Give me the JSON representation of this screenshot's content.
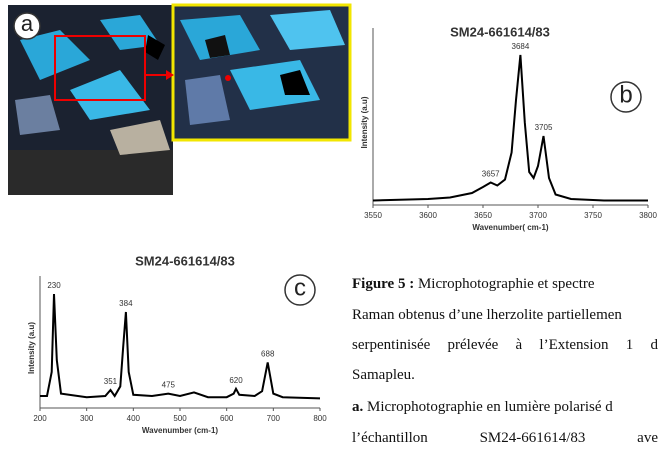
{
  "panels": {
    "a": "a"
  },
  "chart_data": [
    {
      "type": "line",
      "panel": "b",
      "title": "SM24-661614/83",
      "x_label": "Wavenumber( cm-1)",
      "y_label": "Intensity (a.u)",
      "color": "#000000",
      "x": [
        3550,
        3600,
        3620,
        3640,
        3650,
        3657,
        3663,
        3670,
        3676,
        3680,
        3684,
        3688,
        3692,
        3696,
        3700,
        3705,
        3710,
        3716,
        3730,
        3760,
        3800
      ],
      "values": [
        3,
        4,
        5,
        8,
        12,
        15,
        13,
        17,
        35,
        70,
        100,
        55,
        22,
        18,
        26,
        46,
        18,
        7,
        4,
        3,
        3
      ],
      "xlim": [
        3550,
        3800
      ],
      "xticks": [
        3550,
        3600,
        3650,
        3700,
        3750,
        3800
      ],
      "ylim": [
        0,
        110
      ],
      "peaks": [
        3657,
        3684,
        3705
      ]
    },
    {
      "type": "line",
      "panel": "c",
      "title": "SM24-661614/83",
      "x_label": "Wavenumber (cm-1)",
      "y_label": "Intensity (a.u)",
      "color": "#000000",
      "x": [
        200,
        215,
        225,
        230,
        236,
        245,
        300,
        340,
        351,
        360,
        372,
        378,
        384,
        390,
        400,
        440,
        475,
        500,
        530,
        560,
        600,
        615,
        620,
        627,
        660,
        676,
        688,
        700,
        720,
        800
      ],
      "values": [
        10,
        10,
        30,
        95,
        40,
        12,
        9,
        10,
        15,
        10,
        18,
        50,
        80,
        30,
        11,
        10,
        12,
        10,
        13,
        9,
        9,
        12,
        16,
        11,
        10,
        14,
        38,
        12,
        9,
        8
      ],
      "xlim": [
        200,
        800
      ],
      "xticks": [
        200,
        300,
        400,
        500,
        600,
        700,
        800
      ],
      "ylim": [
        0,
        100
      ],
      "peaks": [
        230,
        351,
        384,
        475,
        620,
        688
      ]
    }
  ],
  "caption": {
    "figure": "Figure 5 :",
    "line1": " Microphotographie et spectre",
    "line2": "Raman obtenus d’une lherzolite partiellemen",
    "line3": "serpentinisée prélevée à l’Extension 1 d",
    "line4": "Samapleu.",
    "item": "a.",
    "line5": " Microphotographie en lumière polarisé d",
    "line6": "l’échantillon SM24-661614/83 ave"
  }
}
